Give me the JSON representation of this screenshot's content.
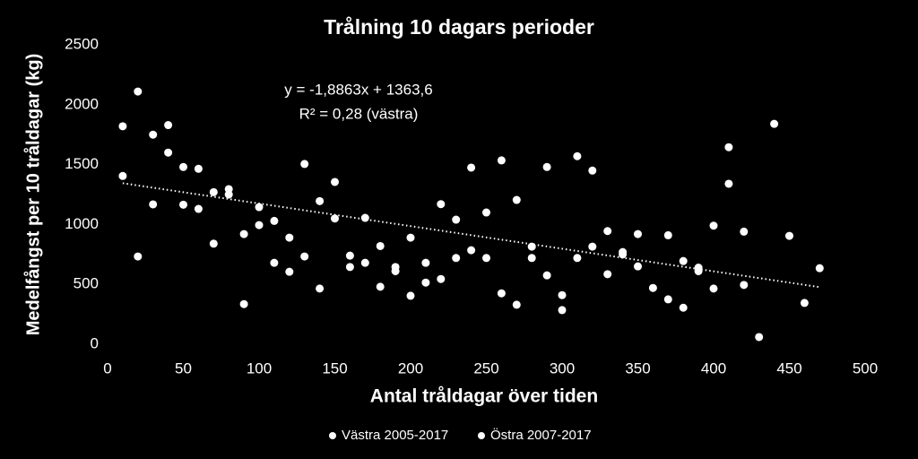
{
  "chart_data": {
    "type": "scatter",
    "title": "Trålning 10 dagars perioder",
    "x_label": "Antal tråldagar över tiden",
    "y_label": "Medelfångst per 10 tråldagar (kg)",
    "annotation": [
      "y = -1,8863x + 1363,6",
      "R² = 0,28 (västra)"
    ],
    "xlim": [
      0,
      500
    ],
    "xticks": [
      0,
      50,
      100,
      150,
      200,
      250,
      300,
      350,
      400,
      450,
      500
    ],
    "ylim": [
      0,
      2500
    ],
    "yticks": [
      0,
      500,
      1000,
      1500,
      2000,
      2500
    ],
    "grid": false,
    "legend": "bottom",
    "trendline": {
      "slope": -1.8863,
      "intercept": 1363.6,
      "x": [
        10,
        470
      ],
      "color": "#ffffff"
    },
    "series": [
      {
        "name": "Västra 2005-2017",
        "color": "#ffffff",
        "x": [
          10,
          20,
          30,
          40,
          50,
          60,
          70,
          80,
          90,
          100,
          110,
          120,
          130,
          140,
          150,
          160,
          170,
          180,
          190,
          200,
          210,
          220,
          230,
          240,
          250,
          260,
          270,
          280,
          290,
          300,
          310,
          320,
          330,
          340,
          350,
          360,
          370,
          380,
          390,
          400,
          410,
          420,
          430,
          440,
          450,
          460,
          470
        ],
        "values": [
          1820,
          2110,
          1750,
          1830,
          1480,
          1465,
          1270,
          1295,
          920,
          1145,
          1030,
          890,
          1505,
          1195,
          1355,
          740,
          1055,
          820,
          645,
          890,
          680,
          1170,
          1040,
          1475,
          1100,
          1535,
          1205,
          815,
          1480,
          410,
          1570,
          1450,
          945,
          770,
          920,
          470,
          910,
          695,
          640,
          990,
          1645,
          940,
          60,
          1840,
          905,
          345,
          635
        ]
      },
      {
        "name": "Östra 2007-2017",
        "color": "#ffffff",
        "x": [
          10,
          20,
          30,
          40,
          50,
          60,
          70,
          80,
          90,
          100,
          110,
          120,
          130,
          140,
          150,
          160,
          170,
          180,
          190,
          200,
          210,
          220,
          230,
          240,
          250,
          260,
          270,
          280,
          290,
          300,
          310,
          320,
          330,
          340,
          350,
          370,
          380,
          390,
          400,
          410,
          420
        ],
        "values": [
          1405,
          733,
          1168,
          1600,
          1165,
          1130,
          840,
          1250,
          335,
          995,
          680,
          605,
          733,
          465,
          1050,
          645,
          680,
          480,
          610,
          405,
          515,
          545,
          720,
          785,
          720,
          425,
          330,
          720,
          575,
          285,
          720,
          815,
          585,
          750,
          650,
          375,
          305,
          610,
          465,
          1340,
          495
        ]
      }
    ]
  }
}
